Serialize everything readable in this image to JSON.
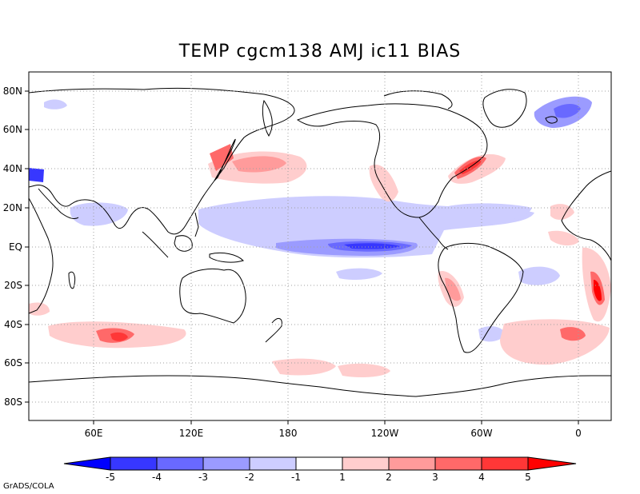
{
  "title": "TEMP cgcm138 AMJ ic11 BIAS",
  "credit": "GrADS/COLA",
  "map": {
    "lat_labels": [
      "80N",
      "60N",
      "40N",
      "20N",
      "EQ",
      "20S",
      "40S",
      "60S",
      "80S"
    ],
    "lon_labels": [
      "60E",
      "120E",
      "180",
      "120W",
      "60W",
      "0"
    ]
  },
  "colorbar": {
    "labels": [
      "-5",
      "-4",
      "-3",
      "-2",
      "-1",
      "1",
      "2",
      "3",
      "4",
      "5"
    ],
    "colors": [
      "#0000ff",
      "#3737ff",
      "#6969ff",
      "#9b9bff",
      "#cdcdff",
      "#ffffff",
      "#ffcdcd",
      "#ff9b9b",
      "#ff6969",
      "#ff3737",
      "#ff0000"
    ]
  },
  "palette": {
    "neg1": "#cdcdff",
    "neg2": "#9b9bff",
    "neg3": "#6969ff",
    "neg4": "#3737ff",
    "neg5": "#0000ff",
    "pos1": "#ffcdcd",
    "pos2": "#ff9b9b",
    "pos3": "#ff6969",
    "pos4": "#ff3737",
    "pos5": "#ff0000"
  }
}
